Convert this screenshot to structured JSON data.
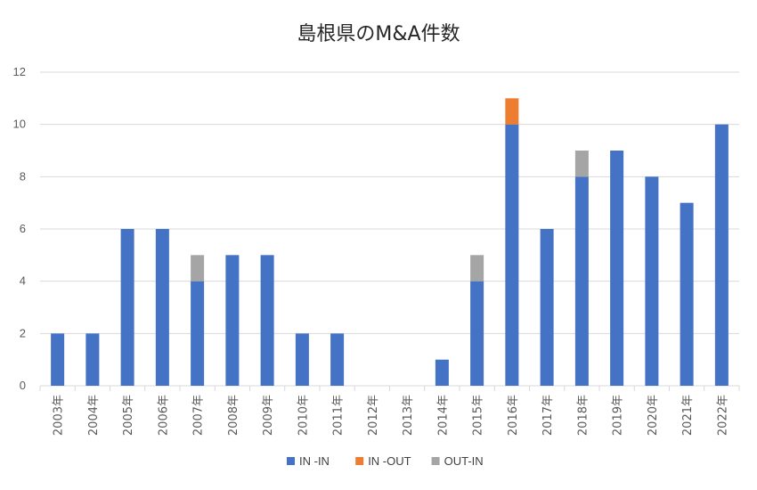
{
  "chart_data": {
    "type": "bar",
    "stacked": true,
    "title": "島根県のM&A件数",
    "categories": [
      "2003年",
      "2004年",
      "2005年",
      "2006年",
      "2007年",
      "2008年",
      "2009年",
      "2010年",
      "2011年",
      "2012年",
      "2013年",
      "2014年",
      "2015年",
      "2016年",
      "2017年",
      "2018年",
      "2019年",
      "2020年",
      "2021年",
      "2022年"
    ],
    "series": [
      {
        "name": "IN -IN",
        "color": "#4472C4",
        "values": [
          2,
          2,
          6,
          6,
          4,
          5,
          5,
          2,
          2,
          0,
          0,
          1,
          4,
          10,
          6,
          8,
          9,
          8,
          7,
          10
        ]
      },
      {
        "name": "IN -OUT",
        "color": "#ED7D31",
        "values": [
          0,
          0,
          0,
          0,
          0,
          0,
          0,
          0,
          0,
          0,
          0,
          0,
          0,
          1,
          0,
          0,
          0,
          0,
          0,
          0
        ]
      },
      {
        "name": "OUT-IN",
        "color": "#A5A5A5",
        "values": [
          0,
          0,
          0,
          0,
          1,
          0,
          0,
          0,
          0,
          0,
          0,
          0,
          1,
          0,
          0,
          1,
          0,
          0,
          0,
          0
        ]
      }
    ],
    "ylim": [
      0,
      12
    ],
    "yticks": [
      0,
      2,
      4,
      6,
      8,
      10,
      12
    ],
    "grid": true,
    "legend_position": "bottom"
  }
}
